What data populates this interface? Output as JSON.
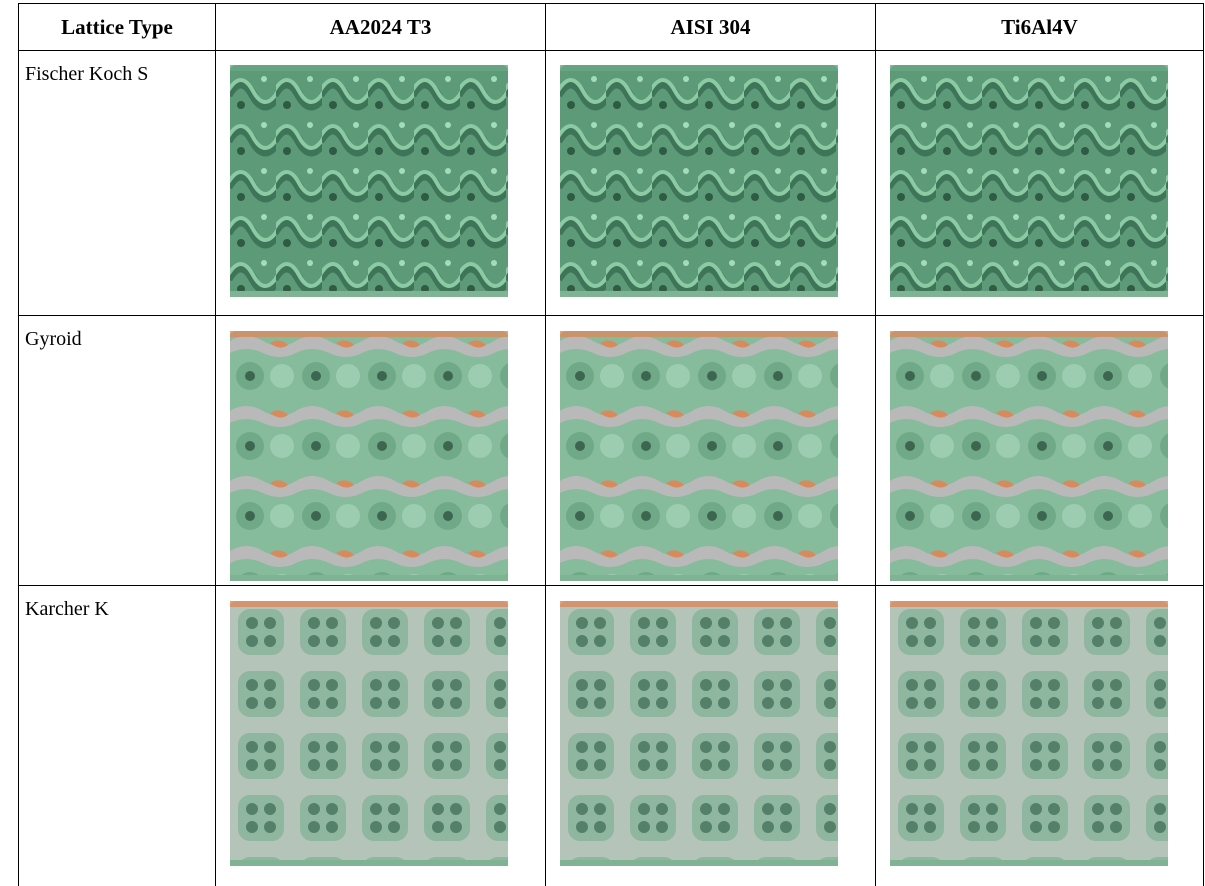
{
  "table": {
    "header": [
      "Lattice Type",
      "AA2024 T3",
      "AISI 304",
      "Ti6Al4V"
    ],
    "rows": [
      [
        "Fischer Koch S"
      ],
      [
        "Gyroid"
      ],
      [
        "Karcher K"
      ]
    ]
  }
}
